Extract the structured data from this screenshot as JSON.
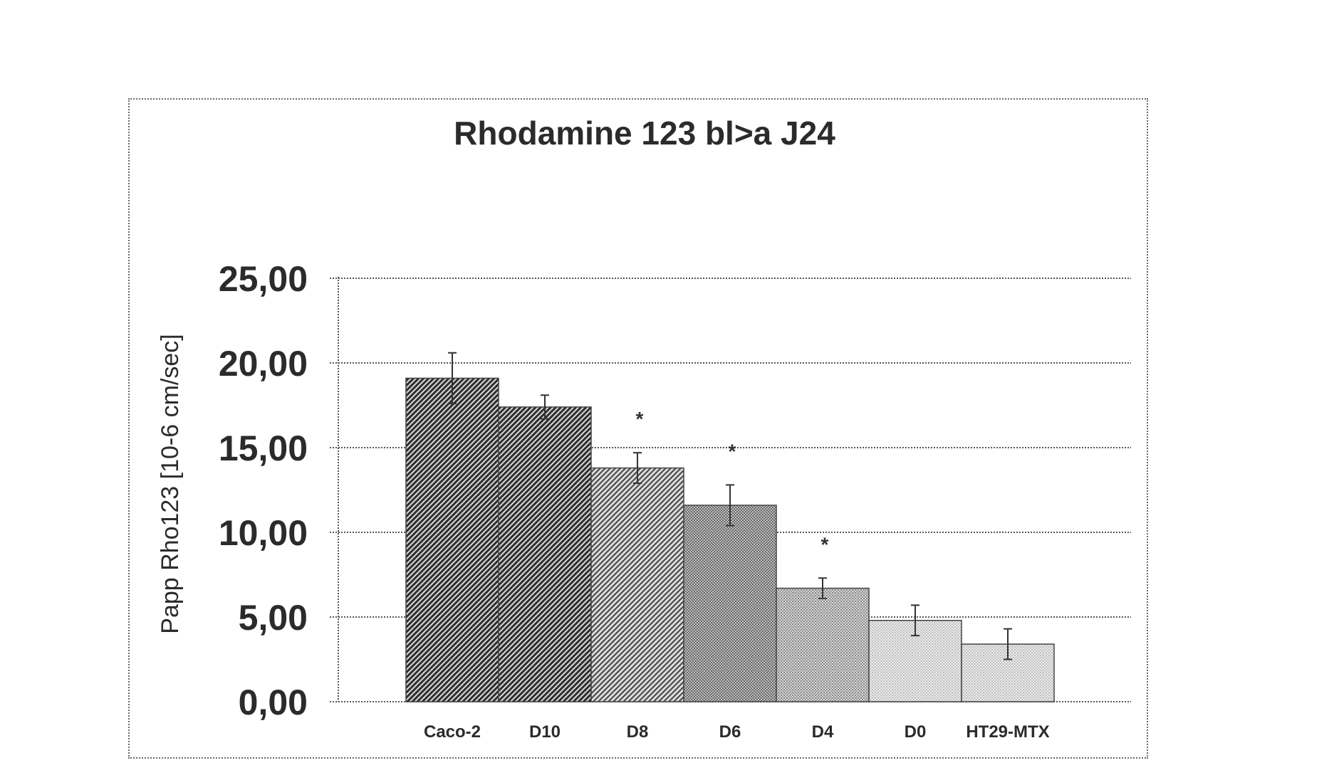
{
  "chart_data": {
    "type": "bar",
    "title": "Rhodamine 123 bl>a J24",
    "xlabel": "",
    "ylabel": "Papp Rho123 [10-6 cm/sec]",
    "ylim": [
      0,
      25
    ],
    "yticks": [
      "0,00",
      "5,00",
      "10,00",
      "15,00",
      "20,00",
      "25,00"
    ],
    "grid": true,
    "categories": [
      "Caco-2",
      "D10",
      "D8",
      "D6",
      "D4",
      "D0",
      "HT29-MTX"
    ],
    "values": [
      19.1,
      17.4,
      13.8,
      11.6,
      6.7,
      4.8,
      3.4
    ],
    "errors": [
      1.5,
      0.7,
      0.9,
      1.2,
      0.6,
      0.9,
      0.9
    ],
    "significance": [
      "",
      "",
      "*",
      "*",
      "*",
      "",
      ""
    ],
    "fills": [
      "pat-dense",
      "pat-dense",
      "pat-medium",
      "pat-dots-dark",
      "pat-dots-mid",
      "pat-dots-light",
      "pat-dots-light"
    ]
  }
}
